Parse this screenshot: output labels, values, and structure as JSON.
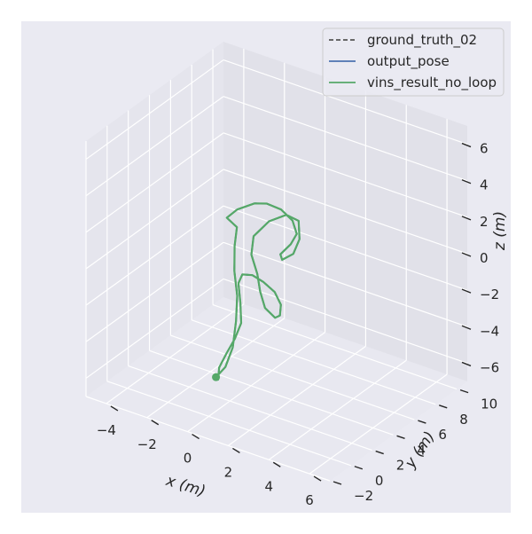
{
  "chart_data": {
    "type": "line3d",
    "title": "",
    "xlabel": "x (m)",
    "ylabel": "y (m)",
    "zlabel": "z (m)",
    "xlim": [
      -5,
      7
    ],
    "ylim": [
      -2,
      11
    ],
    "zlim": [
      -7,
      7
    ],
    "xticks": [
      "−4",
      "−2",
      "0",
      "2",
      "4",
      "6"
    ],
    "yticks": [
      "−2",
      "0",
      "2",
      "4",
      "6",
      "8",
      "10"
    ],
    "zticks": [
      "−6",
      "−4",
      "−2",
      "0",
      "2",
      "4",
      "6"
    ],
    "legend_position": "top-right",
    "series": [
      {
        "name": "ground_truth_02",
        "style": "dashed",
        "color": "#555555",
        "points": [
          [
            0.2,
            0.3,
            -4.9
          ],
          [
            0.3,
            1.0,
            -4.6
          ],
          [
            0.4,
            1.5,
            -3.7
          ],
          [
            0.3,
            2.0,
            -2.5
          ],
          [
            0.1,
            2.5,
            -1.4
          ],
          [
            -0.3,
            3.0,
            -0.4
          ],
          [
            -0.6,
            3.6,
            0.6
          ],
          [
            -0.8,
            4.2,
            1.3
          ],
          [
            -1.4,
            4.4,
            1.5
          ],
          [
            -1.1,
            4.8,
            1.9
          ],
          [
            -0.3,
            4.9,
            2.5
          ],
          [
            0.2,
            5.1,
            2.6
          ],
          [
            0.7,
            5.5,
            2.3
          ],
          [
            1.0,
            6.0,
            1.6
          ],
          [
            1.0,
            6.4,
            0.7
          ],
          [
            0.6,
            6.6,
            -0.1
          ],
          [
            0.3,
            6.2,
            -0.6
          ],
          [
            0.7,
            5.6,
            -0.5
          ],
          [
            1.3,
            5.5,
            0.1
          ],
          [
            1.5,
            5.7,
            0.9
          ],
          [
            1.3,
            6.0,
            1.7
          ],
          [
            0.7,
            6.0,
            1.8
          ],
          [
            0.0,
            5.7,
            1.3
          ],
          [
            -0.5,
            5.2,
            0.5
          ],
          [
            -0.4,
            4.8,
            -0.3
          ],
          [
            0.1,
            4.4,
            -1.0
          ],
          [
            0.5,
            3.9,
            -1.6
          ],
          [
            1.0,
            3.4,
            -2.1
          ],
          [
            1.7,
            3.0,
            -2.2
          ],
          [
            2.1,
            2.7,
            -1.8
          ],
          [
            2.3,
            2.4,
            -1.0
          ],
          [
            2.1,
            2.2,
            -0.3
          ],
          [
            1.6,
            2.1,
            0.1
          ],
          [
            1.0,
            2.2,
            0.2
          ],
          [
            0.3,
            2.6,
            -0.2
          ],
          [
            -0.1,
            3.0,
            -1.0
          ],
          [
            0.1,
            2.8,
            -1.9
          ],
          [
            0.4,
            2.3,
            -2.7
          ],
          [
            0.4,
            1.7,
            -3.3
          ],
          [
            0.3,
            1.1,
            -3.9
          ],
          [
            0.2,
            0.6,
            -4.5
          ],
          [
            0.3,
            0.3,
            -5.0
          ]
        ]
      },
      {
        "name": "output_pose",
        "style": "solid",
        "color": "#4c72b0",
        "points": [
          [
            0.2,
            0.3,
            -4.9
          ],
          [
            0.3,
            1.0,
            -4.6
          ],
          [
            0.4,
            1.5,
            -3.7
          ],
          [
            0.3,
            2.0,
            -2.5
          ],
          [
            0.1,
            2.5,
            -1.4
          ],
          [
            -0.3,
            3.0,
            -0.4
          ],
          [
            -0.6,
            3.6,
            0.6
          ],
          [
            -0.8,
            4.2,
            1.3
          ],
          [
            -1.4,
            4.4,
            1.5
          ],
          [
            -1.1,
            4.8,
            1.9
          ],
          [
            -0.3,
            4.9,
            2.5
          ],
          [
            0.2,
            5.1,
            2.6
          ],
          [
            0.7,
            5.5,
            2.3
          ],
          [
            1.0,
            6.0,
            1.6
          ],
          [
            1.0,
            6.4,
            0.7
          ],
          [
            0.6,
            6.6,
            -0.1
          ],
          [
            0.3,
            6.2,
            -0.6
          ],
          [
            0.7,
            5.6,
            -0.5
          ],
          [
            1.3,
            5.5,
            0.1
          ],
          [
            1.5,
            5.7,
            0.9
          ],
          [
            1.3,
            6.0,
            1.7
          ],
          [
            0.7,
            6.0,
            1.8
          ],
          [
            0.0,
            5.7,
            1.3
          ],
          [
            -0.5,
            5.2,
            0.5
          ],
          [
            -0.4,
            4.8,
            -0.3
          ],
          [
            0.1,
            4.4,
            -1.0
          ],
          [
            0.5,
            3.9,
            -1.6
          ],
          [
            1.0,
            3.4,
            -2.1
          ],
          [
            1.7,
            3.0,
            -2.2
          ],
          [
            2.1,
            2.7,
            -1.8
          ],
          [
            2.3,
            2.4,
            -1.0
          ],
          [
            2.1,
            2.2,
            -0.3
          ],
          [
            1.6,
            2.1,
            0.1
          ],
          [
            1.0,
            2.2,
            0.2
          ],
          [
            0.3,
            2.6,
            -0.2
          ],
          [
            -0.1,
            3.0,
            -1.0
          ],
          [
            0.1,
            2.8,
            -1.9
          ],
          [
            0.4,
            2.3,
            -2.7
          ],
          [
            0.4,
            1.7,
            -3.3
          ],
          [
            0.3,
            1.1,
            -3.9
          ],
          [
            0.2,
            0.6,
            -4.5
          ],
          [
            0.3,
            0.3,
            -5.0
          ]
        ]
      },
      {
        "name": "vins_result_no_loop",
        "style": "solid",
        "color": "#55a868",
        "points": [
          [
            0.2,
            0.3,
            -4.9
          ],
          [
            0.3,
            1.0,
            -4.6
          ],
          [
            0.4,
            1.5,
            -3.7
          ],
          [
            0.3,
            2.0,
            -2.5
          ],
          [
            0.1,
            2.5,
            -1.4
          ],
          [
            -0.3,
            3.0,
            -0.4
          ],
          [
            -0.6,
            3.6,
            0.6
          ],
          [
            -0.8,
            4.2,
            1.3
          ],
          [
            -1.4,
            4.4,
            1.5
          ],
          [
            -1.1,
            4.8,
            1.9
          ],
          [
            -0.3,
            4.9,
            2.5
          ],
          [
            0.2,
            5.1,
            2.6
          ],
          [
            0.7,
            5.5,
            2.3
          ],
          [
            1.0,
            6.0,
            1.6
          ],
          [
            1.0,
            6.4,
            0.7
          ],
          [
            0.6,
            6.6,
            -0.1
          ],
          [
            0.3,
            6.2,
            -0.6
          ],
          [
            0.7,
            5.6,
            -0.5
          ],
          [
            1.3,
            5.5,
            0.1
          ],
          [
            1.5,
            5.7,
            0.9
          ],
          [
            1.3,
            6.0,
            1.7
          ],
          [
            0.7,
            6.0,
            1.8
          ],
          [
            0.0,
            5.7,
            1.3
          ],
          [
            -0.5,
            5.2,
            0.5
          ],
          [
            -0.4,
            4.8,
            -0.3
          ],
          [
            0.1,
            4.4,
            -1.0
          ],
          [
            0.5,
            3.9,
            -1.6
          ],
          [
            1.0,
            3.4,
            -2.1
          ],
          [
            1.7,
            3.0,
            -2.2
          ],
          [
            2.1,
            2.7,
            -1.8
          ],
          [
            2.3,
            2.4,
            -1.0
          ],
          [
            2.1,
            2.2,
            -0.3
          ],
          [
            1.6,
            2.1,
            0.1
          ],
          [
            1.0,
            2.2,
            0.2
          ],
          [
            0.3,
            2.6,
            -0.2
          ],
          [
            -0.1,
            3.0,
            -1.0
          ],
          [
            0.1,
            2.8,
            -1.9
          ],
          [
            0.4,
            2.3,
            -2.7
          ],
          [
            0.4,
            1.7,
            -3.3
          ],
          [
            0.3,
            1.1,
            -3.9
          ],
          [
            0.2,
            0.6,
            -4.5
          ],
          [
            0.3,
            0.3,
            -5.0
          ]
        ]
      }
    ]
  },
  "colors": {
    "figure_bg": "#eaeaf2",
    "pane_left": "#e5e5ed",
    "pane_back": "#e1e1e9",
    "pane_floor": "#e8e8f0",
    "grid": "#ffffff",
    "text": "#262626"
  }
}
